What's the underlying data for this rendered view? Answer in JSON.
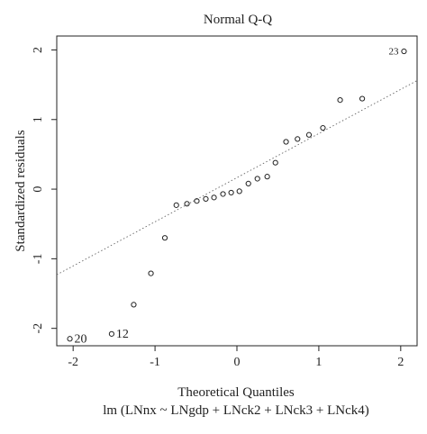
{
  "chart_data": {
    "type": "scatter",
    "title": "Normal Q-Q",
    "xlabel": "Theoretical Quantiles",
    "subtitle": "lm (LNnx ~ LNgdp + LNck2 + LNck3 + LNck4)",
    "ylabel": "Standardized residuals",
    "xlim": [
      -2.2,
      2.2
    ],
    "ylim": [
      -2.25,
      2.2
    ],
    "x_ticks": [
      -2,
      -1,
      0,
      1,
      2
    ],
    "y_ticks": [
      -2,
      -1,
      0,
      1,
      2
    ],
    "x_tick_labels": [
      "-2",
      "-1",
      "0",
      "1",
      "2"
    ],
    "y_tick_labels": [
      "-2",
      "-1",
      "0",
      "1",
      "2"
    ],
    "grid": false,
    "reference_line": {
      "x": [
        -2.2,
        2.2
      ],
      "y": [
        -1.23,
        1.56
      ]
    },
    "points": [
      {
        "x": -2.04,
        "y": -2.15,
        "label": "20"
      },
      {
        "x": -1.53,
        "y": -2.08,
        "label": "12"
      },
      {
        "x": -1.26,
        "y": -1.66
      },
      {
        "x": -1.05,
        "y": -1.21
      },
      {
        "x": -0.88,
        "y": -0.7
      },
      {
        "x": -0.74,
        "y": -0.23
      },
      {
        "x": -0.61,
        "y": -0.21
      },
      {
        "x": -0.49,
        "y": -0.17
      },
      {
        "x": -0.38,
        "y": -0.14
      },
      {
        "x": -0.28,
        "y": -0.12
      },
      {
        "x": -0.17,
        "y": -0.07
      },
      {
        "x": -0.07,
        "y": -0.05
      },
      {
        "x": 0.03,
        "y": -0.03
      },
      {
        "x": 0.14,
        "y": 0.08
      },
      {
        "x": 0.25,
        "y": 0.15
      },
      {
        "x": 0.37,
        "y": 0.18
      },
      {
        "x": 0.47,
        "y": 0.38
      },
      {
        "x": 0.6,
        "y": 0.68
      },
      {
        "x": 0.74,
        "y": 0.72
      },
      {
        "x": 0.88,
        "y": 0.78
      },
      {
        "x": 1.05,
        "y": 0.88
      },
      {
        "x": 1.26,
        "y": 1.28
      },
      {
        "x": 1.53,
        "y": 1.3
      },
      {
        "x": 2.04,
        "y": 1.98,
        "label": "23"
      }
    ]
  }
}
